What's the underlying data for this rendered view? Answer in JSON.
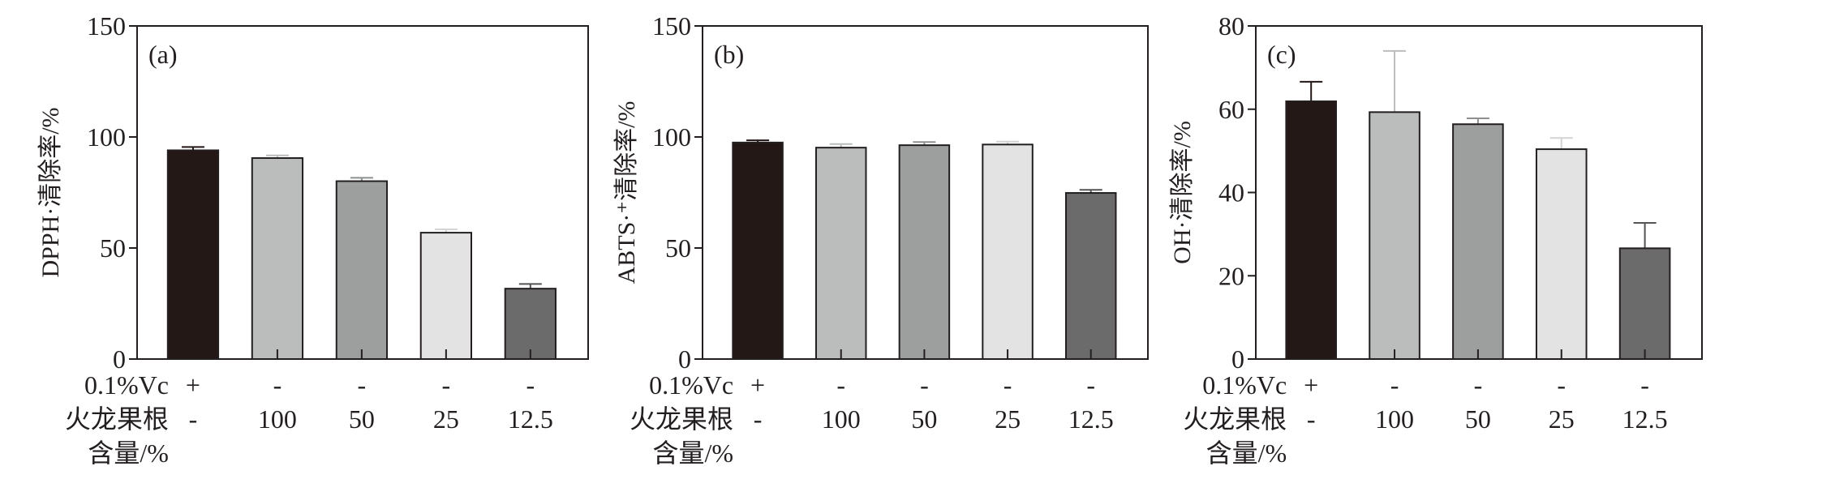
{
  "row_labels": {
    "vc": "0.1%Vc",
    "root_line1": "火龙果根",
    "root_line2": "含量/%"
  },
  "colors": {
    "outline": "#231f20",
    "fills": [
      "#231815",
      "#bbbdbc",
      "#9d9e9e",
      "#e3e3e3",
      "#6c6b6b"
    ]
  },
  "chart_data": [
    {
      "type": "bar",
      "panel_label": "(a)",
      "ylabel": "DPPH·清除率/%",
      "ylim": [
        0,
        150
      ],
      "yticks": [
        "0",
        "50",
        "100",
        "150"
      ],
      "ytick_values": [
        0,
        50,
        100,
        150
      ],
      "vc_row": [
        "+",
        "-",
        "-",
        "-",
        "-"
      ],
      "root_row": [
        "-",
        "100",
        "50",
        "25",
        "12.5"
      ],
      "values": [
        94.0,
        90.5,
        80.1,
        56.9,
        31.7
      ],
      "error_upper": [
        95.5,
        91.7,
        81.6,
        58.4,
        33.8
      ]
    },
    {
      "type": "bar",
      "panel_label": "(b)",
      "ylabel": "ABTS·⁺清除率/%",
      "ylim": [
        0,
        150
      ],
      "yticks": [
        "0",
        "50",
        "100",
        "150"
      ],
      "ytick_values": [
        0,
        50,
        100,
        150
      ],
      "vc_row": [
        "+",
        "-",
        "-",
        "-",
        "-"
      ],
      "root_row": [
        "-",
        "100",
        "50",
        "25",
        "12.5"
      ],
      "values": [
        97.5,
        95.2,
        96.3,
        96.6,
        74.8
      ],
      "error_upper": [
        98.5,
        96.8,
        97.7,
        97.9,
        76.2
      ]
    },
    {
      "type": "bar",
      "panel_label": "(c)",
      "ylabel": "OH·清除率/%",
      "ylim": [
        0,
        80
      ],
      "yticks": [
        "0",
        "20",
        "40",
        "60",
        "80"
      ],
      "ytick_values": [
        0,
        20,
        40,
        60,
        80
      ],
      "vc_row": [
        "+",
        "-",
        "-",
        "-",
        "-"
      ],
      "root_row": [
        "-",
        "100",
        "50",
        "25",
        "12.5"
      ],
      "values": [
        61.9,
        59.3,
        56.4,
        50.4,
        26.6
      ],
      "error_upper": [
        66.6,
        74.0,
        57.8,
        53.1,
        32.7
      ]
    }
  ]
}
